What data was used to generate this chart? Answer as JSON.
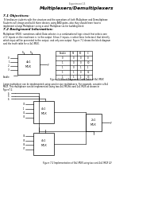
{
  "experiment": "Experiment 15",
  "title": "Multiplexers/Demultiplexers",
  "s1_title": "7.1 Objectives:",
  "s1_lines": [
    "To familiarize students with the structure and the operations of both Multiplexer and Demultiplexer.",
    "Students will design and build these devices using AND gates, also they should learn how to",
    "implement a large Multiplexer using a small Multiplexer as for building block."
  ],
  "s2_title": "7.2 Background Information:",
  "s2_lines": [
    "Multiplexer (MUX): sometimes called Data selector, is a combinational logic circuit that selects one",
    "of 2ⁿ inputs on the read more n. to the output. It has 2ⁿ inputs, n select lines (selectors) that identify",
    "which input will be presented to the output, and only one output. Figure 7.1 shows the block diagram",
    "and the truth table for a 4x1 MUX."
  ],
  "fig1_caption": "Figure 7.1 Block Diagram & Truth Table of 4x1 MUX",
  "s3_lines": [
    "Large multiplexer can be implemented using smaller size multiplexers. For example, consider a 8x1",
    "MUX. This multiplexer can be implemented using two 4x1 MUXes and 2x1 MUX as shown in",
    "Figure7.2."
  ],
  "fig2_caption": "Figure 7.2 Implementation of 8x1 MUX using two and 2x1 MUX (2)",
  "tt_headers": [
    "Enable",
    "S1",
    "S0",
    "C"
  ],
  "tt_rows": [
    [
      "0",
      "0",
      "0",
      "0"
    ],
    [
      "1",
      "0",
      "0",
      "I0"
    ],
    [
      "1",
      "0",
      "1",
      "I1"
    ],
    [
      "1",
      "1",
      "0",
      "I2"
    ],
    [
      "1",
      "1",
      "1",
      "I3"
    ]
  ],
  "top_inputs": [
    "I0",
    "I1",
    "I2",
    "I3"
  ],
  "bot_inputs": [
    "I4",
    "I5",
    "I6",
    "I7"
  ],
  "bg": "#ffffff"
}
